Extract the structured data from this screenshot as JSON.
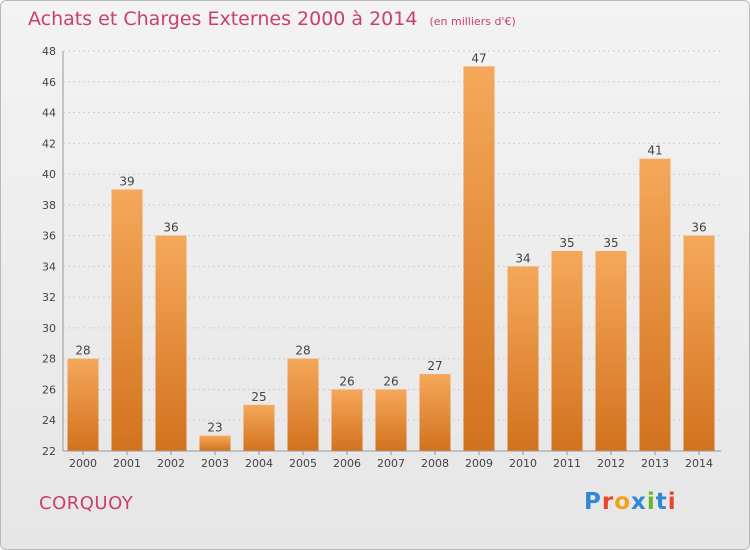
{
  "header": {
    "title": "Achats et Charges Externes 2000 à 2014",
    "unit": "(en milliers d'€)"
  },
  "footer": {
    "town": "CORQUOY",
    "logo": "Proxiti",
    "logo_colors": [
      "#2f87d6",
      "#e8462e",
      "#f0a21a",
      "#2f87d6",
      "#6ab42d",
      "#2f87d6",
      "#e8462e"
    ]
  },
  "chart_data": {
    "type": "bar",
    "title": "Achats et Charges Externes 2000 à 2014",
    "subtitle": "(en milliers d'€)",
    "categories": [
      "2000",
      "2001",
      "2002",
      "2003",
      "2004",
      "2005",
      "2006",
      "2007",
      "2008",
      "2009",
      "2010",
      "2011",
      "2012",
      "2013",
      "2014"
    ],
    "values": [
      28,
      39,
      36,
      23,
      25,
      28,
      26,
      26,
      27,
      47,
      34,
      35,
      35,
      41,
      36
    ],
    "ylim": [
      22,
      48
    ],
    "yticks": [
      22,
      24,
      26,
      28,
      30,
      32,
      34,
      36,
      38,
      40,
      42,
      44,
      46,
      48
    ],
    "grid": true,
    "bar_color": "#e98e35"
  }
}
